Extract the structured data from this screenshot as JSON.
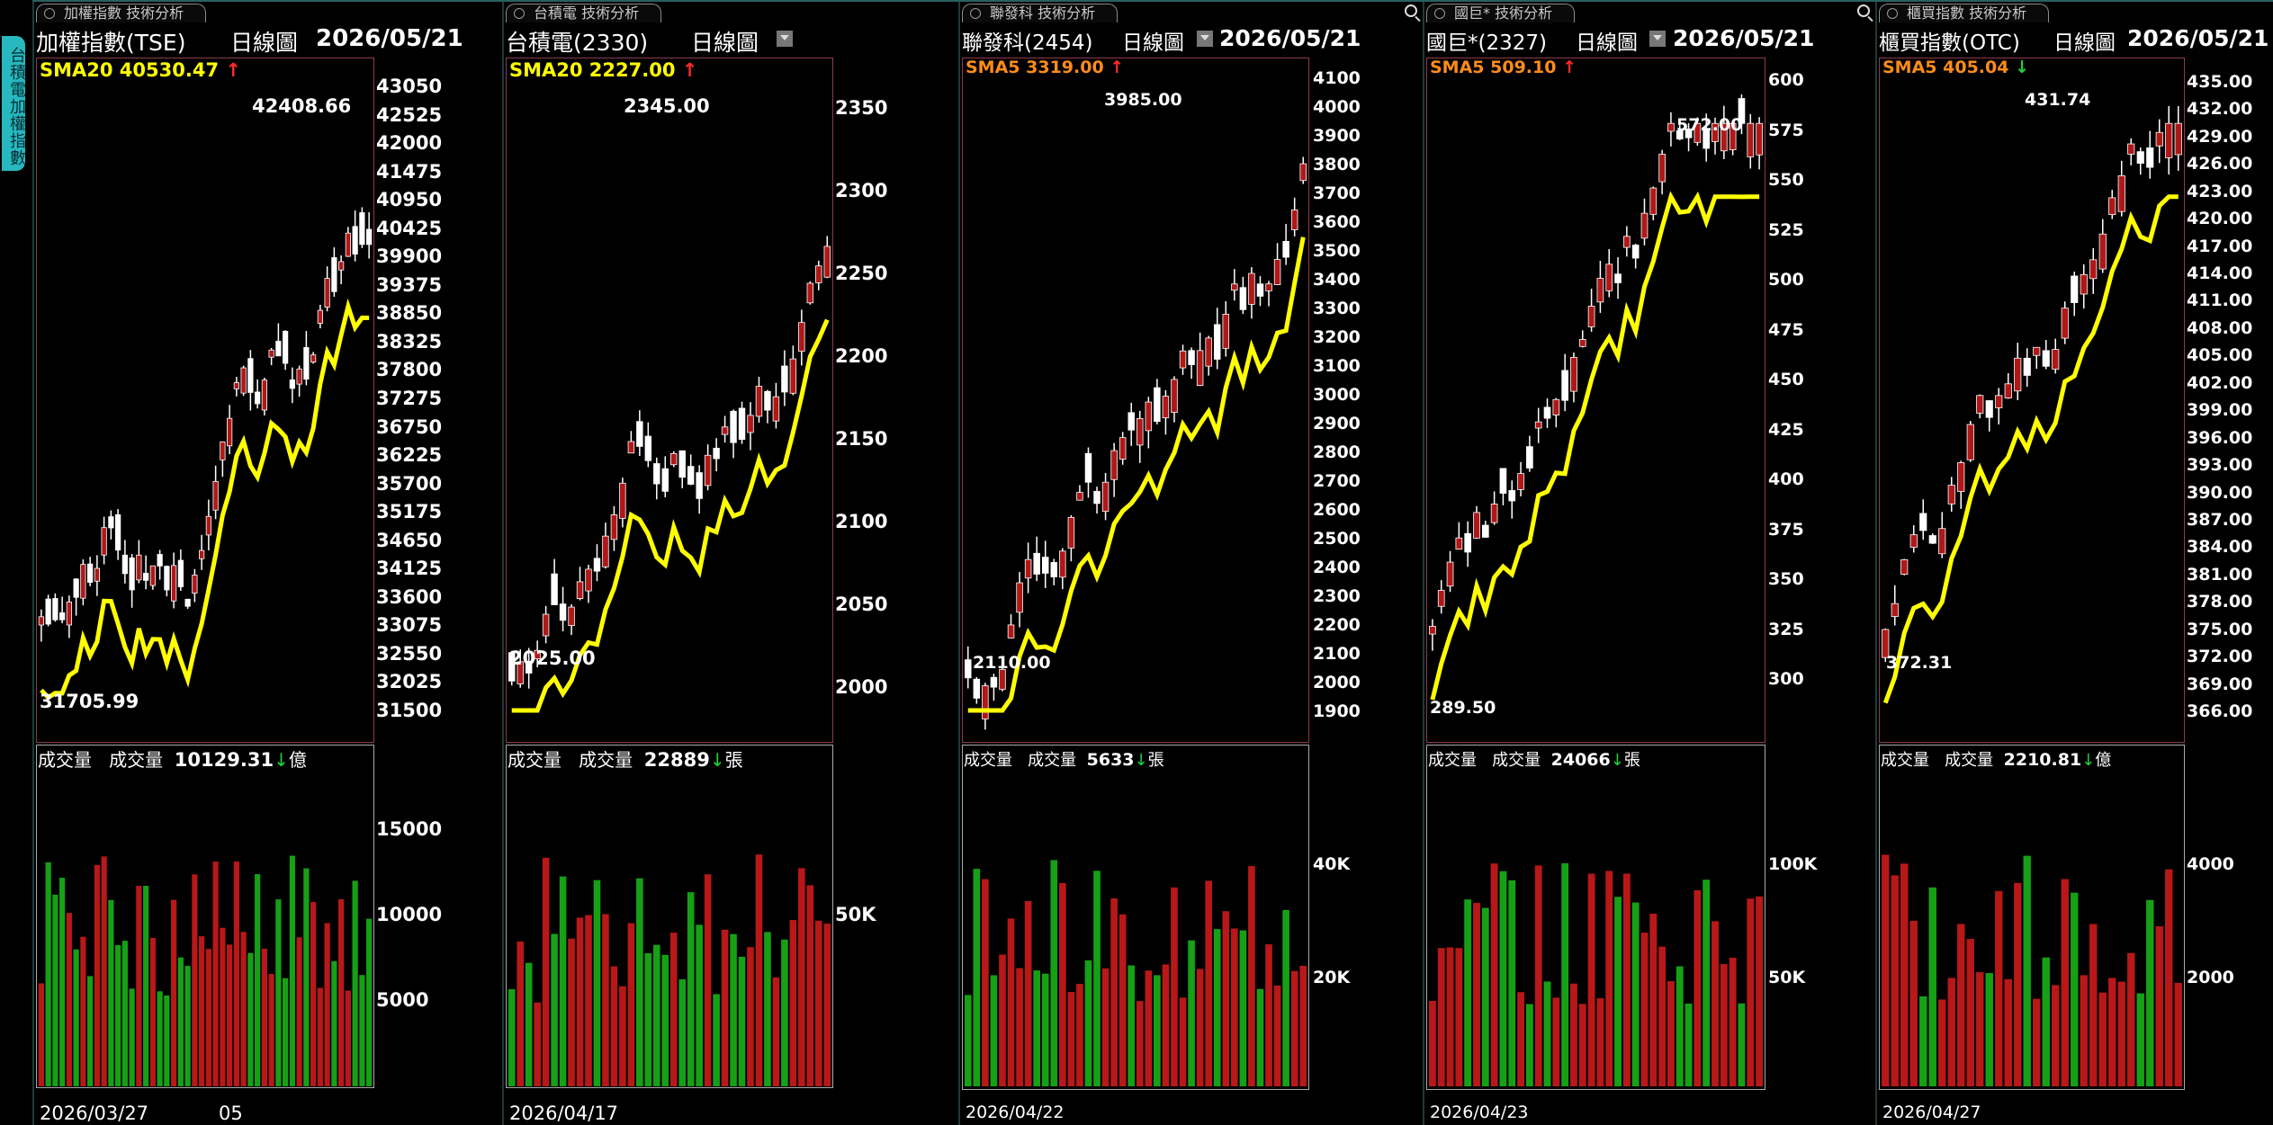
{
  "side_tab": {
    "label": "台積電加權指數"
  },
  "colors": {
    "up_candle": "#b01818",
    "down_candle": "#ffffff",
    "sma_main": "#ffff00",
    "volume_up": "#b81818",
    "volume_down": "#16a016",
    "chart_border": "#8d3b4b"
  },
  "panels": [
    {
      "tab": "加權指數 技術分析",
      "name": "加權指數(TSE)",
      "period": "日線圖",
      "date": "2026/05/21",
      "sma_label": "SMA20 40530.47",
      "sma_arrow": "↑",
      "high_label": "42408.66",
      "low_label": "31705.99",
      "volume_label": "成交量",
      "volume_title": "成交量",
      "volume_value": "10129.31",
      "volume_arrow": "↓",
      "volume_unit": "億",
      "dates": [
        "2026/03/27",
        "05"
      ],
      "price_ticks": [
        "43050",
        "42525",
        "42000",
        "41475",
        "40950",
        "40425",
        "39900",
        "39375",
        "38850",
        "38325",
        "37800",
        "37275",
        "36750",
        "36225",
        "35700",
        "35175",
        "34650",
        "34125",
        "33600",
        "33075",
        "32550",
        "32025",
        "31500"
      ],
      "volume_ticks": [
        "15000",
        "10000",
        "5000"
      ]
    },
    {
      "tab": "台積電 技術分析",
      "name": "台積電(2330)",
      "period": "日線圖",
      "date": "",
      "sma_label": "SMA20 2227.00",
      "sma_arrow": "↑",
      "high_label": "2345.00",
      "low_label": "2025.00",
      "volume_label": "成交量",
      "volume_title": "成交量",
      "volume_value": "22889",
      "volume_arrow": "↓",
      "volume_unit": "張",
      "dates": [
        "2026/04/17"
      ],
      "price_ticks": [
        "2350",
        "2300",
        "2250",
        "2200",
        "2150",
        "2100",
        "2050",
        "2000"
      ],
      "volume_ticks": [
        "50K"
      ]
    },
    {
      "tab": "聯發科 技術分析",
      "name": "聯發科(2454)",
      "period": "日線圖",
      "date": "2026/05/21",
      "sma_label": "SMA5 3319.00",
      "sma_arrow": "↑",
      "high_label": "3985.00",
      "low_label": "2110.00",
      "volume_label": "成交量",
      "volume_title": "成交量",
      "volume_value": "5633",
      "volume_arrow": "↓",
      "volume_unit": "張",
      "dates": [
        "2026/04/22"
      ],
      "price_ticks": [
        "4100",
        "4000",
        "3900",
        "3800",
        "3700",
        "3600",
        "3500",
        "3400",
        "3300",
        "3200",
        "3100",
        "3000",
        "2900",
        "2800",
        "2700",
        "2600",
        "2500",
        "2400",
        "2300",
        "2200",
        "2100",
        "2000",
        "1900"
      ],
      "volume_ticks": [
        "40K",
        "20K"
      ]
    },
    {
      "tab": "國巨* 技術分析",
      "name": "國巨*(2327)",
      "period": "日線圖",
      "date": "2026/05/21",
      "sma_label": "SMA5 509.10",
      "sma_arrow": "↑",
      "high_label": "572.00",
      "low_label": "289.50",
      "volume_label": "成交量",
      "volume_title": "成交量",
      "volume_value": "24066",
      "volume_arrow": "↓",
      "volume_unit": "張",
      "dates": [
        "2026/04/23"
      ],
      "price_ticks": [
        "600",
        "575",
        "550",
        "525",
        "500",
        "475",
        "450",
        "425",
        "400",
        "375",
        "350",
        "325",
        "300"
      ],
      "volume_ticks": [
        "100K",
        "50K"
      ]
    },
    {
      "tab": "櫃買指數 技術分析",
      "name": "櫃買指數(OTC)",
      "period": "日線圖",
      "date": "2026/05/21",
      "sma_label": "SMA5 405.04",
      "sma_arrow": "↓",
      "high_label": "431.74",
      "low_label": "372.31",
      "volume_label": "成交量",
      "volume_title": "成交量",
      "volume_value": "2210.81",
      "volume_arrow": "↓",
      "volume_unit": "億",
      "dates": [
        "2026/04/27"
      ],
      "price_ticks": [
        "435.00",
        "432.00",
        "429.00",
        "426.00",
        "423.00",
        "420.00",
        "417.00",
        "414.00",
        "411.00",
        "408.00",
        "405.00",
        "402.00",
        "399.00",
        "396.00",
        "393.00",
        "390.00",
        "387.00",
        "384.00",
        "381.00",
        "378.00",
        "375.00",
        "372.00",
        "369.00",
        "366.00"
      ],
      "volume_ticks": [
        "4000",
        "2000"
      ]
    }
  ]
}
